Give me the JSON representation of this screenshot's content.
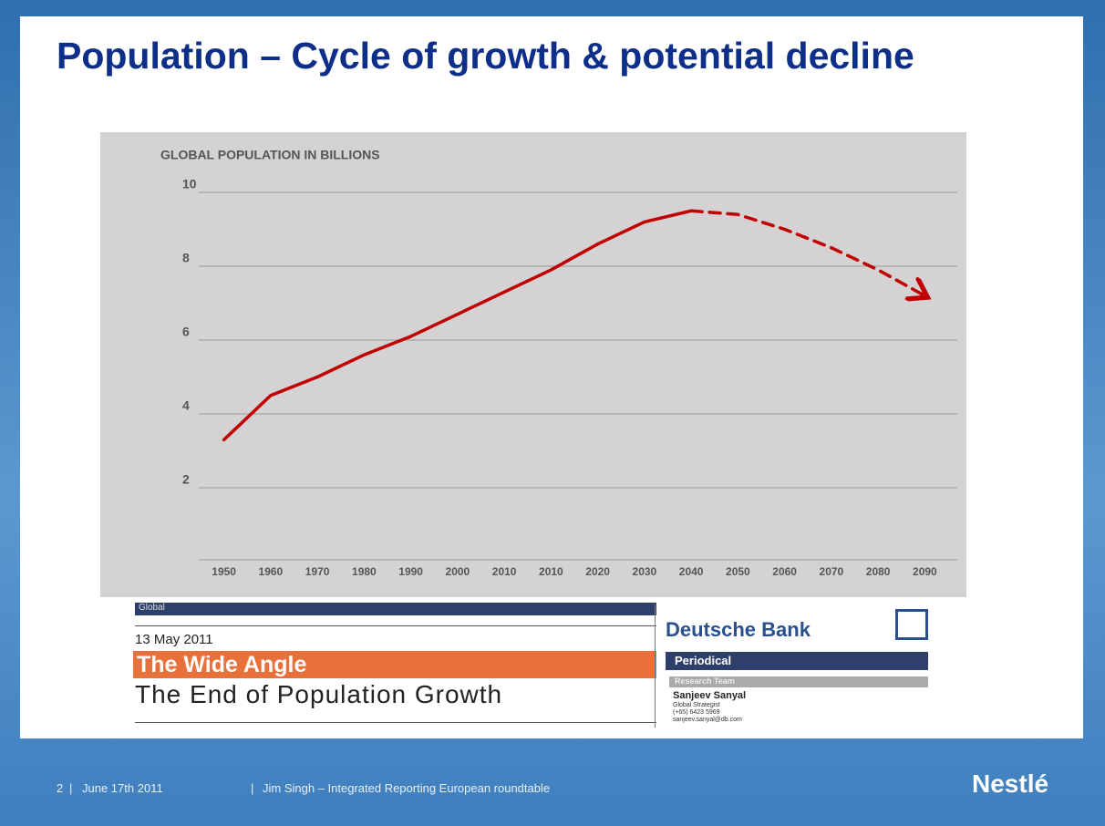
{
  "slide_title": "Population – Cycle of growth & potential decline",
  "chart_data": {
    "type": "line",
    "title": "GLOBAL POPULATION IN BILLIONS",
    "categories": [
      "1950",
      "1960",
      "1970",
      "1980",
      "1990",
      "2000",
      "2010",
      "2010",
      "2020",
      "2030",
      "2040",
      "2050",
      "2060",
      "2070",
      "2080",
      "2090"
    ],
    "series": [
      {
        "color": "#c00000",
        "line_style": "solid",
        "values": [
          3.3,
          4.5,
          5.0,
          5.6,
          6.1,
          6.7,
          7.3,
          7.9,
          8.6,
          9.2,
          9.5,
          null,
          null,
          null,
          null,
          null
        ]
      },
      {
        "color": "#c00000",
        "line_style": "dashed",
        "arrow": true,
        "values": [
          null,
          null,
          null,
          null,
          null,
          null,
          null,
          null,
          null,
          null,
          9.5,
          9.4,
          9.0,
          8.5,
          7.9,
          7.2
        ]
      }
    ],
    "ylim": [
      0,
      10
    ],
    "yticks": [
      2,
      4,
      6,
      8,
      10
    ],
    "grid": true
  },
  "report": {
    "section": "Global",
    "date": "13 May 2011",
    "series_title": "The Wide Angle",
    "headline": "The End of Population Growth",
    "bank": "Deutsche Bank",
    "kind": "Periodical",
    "team": "Research Team",
    "author": "Sanjeev Sanyal",
    "role": "Global Strategist",
    "phone": "(+65) 6423 5969",
    "email": "sanjeev.sanyal@db.com"
  },
  "footer": {
    "page": "2",
    "date": "June 17th 2011",
    "event": "Jim Singh – Integrated Reporting European roundtable",
    "logo": "Nestlé"
  }
}
